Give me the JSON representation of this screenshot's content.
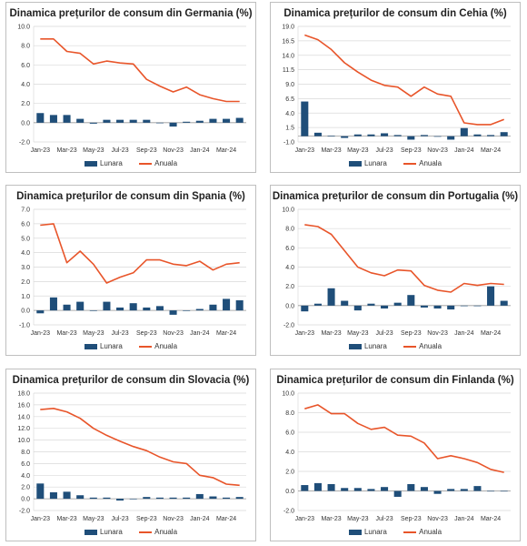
{
  "colors": {
    "bar": "#1f4e79",
    "line": "#e8552a",
    "grid": "#d9d9d9",
    "axis": "#555555"
  },
  "legend": {
    "bar_label": "Lunara",
    "line_label": "Anuala"
  },
  "x_tick_labels": [
    "Jan-23",
    "Mar-23",
    "May-23",
    "Jul-23",
    "Sep-23",
    "Nov-23",
    "Jan-24",
    "Mar-24"
  ],
  "chart_data": [
    {
      "type": "bar+line",
      "title": "Dinamica prețurilor de consum din Germania (%)",
      "categories": [
        "Jan-23",
        "Feb-23",
        "Mar-23",
        "Apr-23",
        "May-23",
        "Jun-23",
        "Jul-23",
        "Aug-23",
        "Sep-23",
        "Oct-23",
        "Nov-23",
        "Dec-23",
        "Jan-24",
        "Feb-24",
        "Mar-24",
        "Apr-24"
      ],
      "series": [
        {
          "name": "Lunara",
          "kind": "bar",
          "values": [
            1.0,
            0.8,
            0.8,
            0.4,
            -0.1,
            0.3,
            0.3,
            0.3,
            0.3,
            0.0,
            -0.4,
            0.1,
            0.2,
            0.4,
            0.4,
            0.5
          ]
        },
        {
          "name": "Anuala",
          "kind": "line",
          "values": [
            8.7,
            8.7,
            7.4,
            7.2,
            6.1,
            6.4,
            6.2,
            6.1,
            4.5,
            3.8,
            3.2,
            3.7,
            2.9,
            2.5,
            2.2,
            2.2
          ]
        }
      ],
      "yticks": [
        -2.0,
        0.0,
        2.0,
        4.0,
        6.0,
        8.0,
        10.0
      ],
      "ylim": [
        -2,
        10
      ],
      "decimals": 1
    },
    {
      "type": "bar+line",
      "title": "Dinamica prețurilor de consum din Cehia (%)",
      "categories": [
        "Jan-23",
        "Feb-23",
        "Mar-23",
        "Apr-23",
        "May-23",
        "Jun-23",
        "Jul-23",
        "Aug-23",
        "Sep-23",
        "Oct-23",
        "Nov-23",
        "Dec-23",
        "Jan-24",
        "Feb-24",
        "Mar-24",
        "Apr-24"
      ],
      "series": [
        {
          "name": "Lunara",
          "kind": "bar",
          "values": [
            6.0,
            0.6,
            0.1,
            -0.3,
            0.3,
            0.3,
            0.5,
            0.2,
            -0.6,
            0.2,
            -0.1,
            -0.6,
            1.4,
            0.3,
            0.2,
            0.7
          ]
        },
        {
          "name": "Anuala",
          "kind": "line",
          "values": [
            17.5,
            16.7,
            15.0,
            12.7,
            11.1,
            9.7,
            8.8,
            8.5,
            6.9,
            8.5,
            7.3,
            6.9,
            2.3,
            2.0,
            2.0,
            2.9
          ]
        }
      ],
      "yticks": [
        -1.0,
        1.5,
        4.0,
        6.5,
        9.0,
        11.5,
        14.0,
        16.5,
        19.0
      ],
      "ylim": [
        -1,
        19
      ],
      "decimals": 1
    },
    {
      "type": "bar+line",
      "title": "Dinamica prețurilor de consum din Spania (%)",
      "categories": [
        "Jan-23",
        "Feb-23",
        "Mar-23",
        "Apr-23",
        "May-23",
        "Jun-23",
        "Jul-23",
        "Aug-23",
        "Sep-23",
        "Oct-23",
        "Nov-23",
        "Dec-23",
        "Jan-24",
        "Feb-24",
        "Mar-24",
        "Apr-24"
      ],
      "series": [
        {
          "name": "Lunara",
          "kind": "bar",
          "values": [
            -0.2,
            0.9,
            0.4,
            0.6,
            0.0,
            0.6,
            0.2,
            0.5,
            0.2,
            0.3,
            -0.3,
            0.0,
            0.1,
            0.4,
            0.8,
            0.7
          ]
        },
        {
          "name": "Anuala",
          "kind": "line",
          "values": [
            5.9,
            6.0,
            3.3,
            4.1,
            3.2,
            1.9,
            2.3,
            2.6,
            3.5,
            3.5,
            3.2,
            3.1,
            3.4,
            2.8,
            3.2,
            3.3
          ]
        }
      ],
      "yticks": [
        -1.0,
        0.0,
        1.0,
        2.0,
        3.0,
        4.0,
        5.0,
        6.0,
        7.0
      ],
      "ylim": [
        -1,
        7
      ],
      "decimals": 1
    },
    {
      "type": "bar+line",
      "title": "Dinamica prețurilor de consum din Portugalia (%)",
      "categories": [
        "Jan-23",
        "Feb-23",
        "Mar-23",
        "Apr-23",
        "May-23",
        "Jun-23",
        "Jul-23",
        "Aug-23",
        "Sep-23",
        "Oct-23",
        "Nov-23",
        "Dec-23",
        "Jan-24",
        "Feb-24",
        "Mar-24",
        "Apr-24"
      ],
      "series": [
        {
          "name": "Lunara",
          "kind": "bar",
          "values": [
            -0.6,
            0.2,
            1.8,
            0.5,
            -0.5,
            0.2,
            -0.3,
            0.3,
            1.1,
            -0.2,
            -0.3,
            -0.4,
            0.0,
            0.0,
            2.0,
            0.5
          ]
        },
        {
          "name": "Anuala",
          "kind": "line",
          "values": [
            8.4,
            8.2,
            7.4,
            5.7,
            4.0,
            3.4,
            3.1,
            3.7,
            3.6,
            2.1,
            1.6,
            1.4,
            2.3,
            2.1,
            2.3,
            2.2
          ]
        }
      ],
      "yticks": [
        -2.0,
        0.0,
        2.0,
        4.0,
        6.0,
        8.0,
        10.0
      ],
      "ylim": [
        -2,
        10
      ],
      "decimals": 1
    },
    {
      "type": "bar+line",
      "title": "Dinamica prețurilor de consum din Slovacia (%)",
      "categories": [
        "Jan-23",
        "Feb-23",
        "Mar-23",
        "Apr-23",
        "May-23",
        "Jun-23",
        "Jul-23",
        "Aug-23",
        "Sep-23",
        "Oct-23",
        "Nov-23",
        "Dec-23",
        "Jan-24",
        "Feb-24",
        "Mar-24",
        "Apr-24"
      ],
      "series": [
        {
          "name": "Lunara",
          "kind": "bar",
          "values": [
            2.6,
            1.1,
            1.2,
            0.6,
            0.2,
            0.2,
            -0.3,
            0.0,
            0.3,
            0.2,
            0.2,
            0.2,
            0.8,
            0.4,
            0.2,
            0.3
          ]
        },
        {
          "name": "Anuala",
          "kind": "line",
          "values": [
            15.2,
            15.4,
            14.8,
            13.7,
            12.0,
            10.8,
            9.8,
            8.9,
            8.2,
            7.1,
            6.3,
            6.0,
            4.0,
            3.6,
            2.5,
            2.3
          ]
        }
      ],
      "yticks": [
        -2.0,
        0.0,
        2.0,
        4.0,
        6.0,
        8.0,
        10.0,
        12.0,
        14.0,
        16.0,
        18.0
      ],
      "ylim": [
        -2,
        18
      ],
      "decimals": 1
    },
    {
      "type": "bar+line",
      "title": "Dinamica prețurilor de consum din Finlanda (%)",
      "categories": [
        "Jan-23",
        "Feb-23",
        "Mar-23",
        "Apr-23",
        "May-23",
        "Jun-23",
        "Jul-23",
        "Aug-23",
        "Sep-23",
        "Oct-23",
        "Nov-23",
        "Dec-23",
        "Jan-24",
        "Feb-24",
        "Mar-24",
        "Apr-24"
      ],
      "series": [
        {
          "name": "Lunara",
          "kind": "bar",
          "values": [
            0.6,
            0.8,
            0.7,
            0.3,
            0.3,
            0.2,
            0.4,
            -0.6,
            0.7,
            0.4,
            -0.3,
            0.2,
            0.2,
            0.5,
            0.0,
            0.0
          ]
        },
        {
          "name": "Anuala",
          "kind": "line",
          "values": [
            8.4,
            8.8,
            7.9,
            7.9,
            6.9,
            6.3,
            6.5,
            5.7,
            5.6,
            4.9,
            3.3,
            3.6,
            3.3,
            2.9,
            2.2,
            1.9
          ]
        }
      ],
      "yticks": [
        -2.0,
        0.0,
        2.0,
        4.0,
        6.0,
        8.0,
        10.0
      ],
      "ylim": [
        -2,
        10
      ],
      "decimals": 1
    }
  ]
}
